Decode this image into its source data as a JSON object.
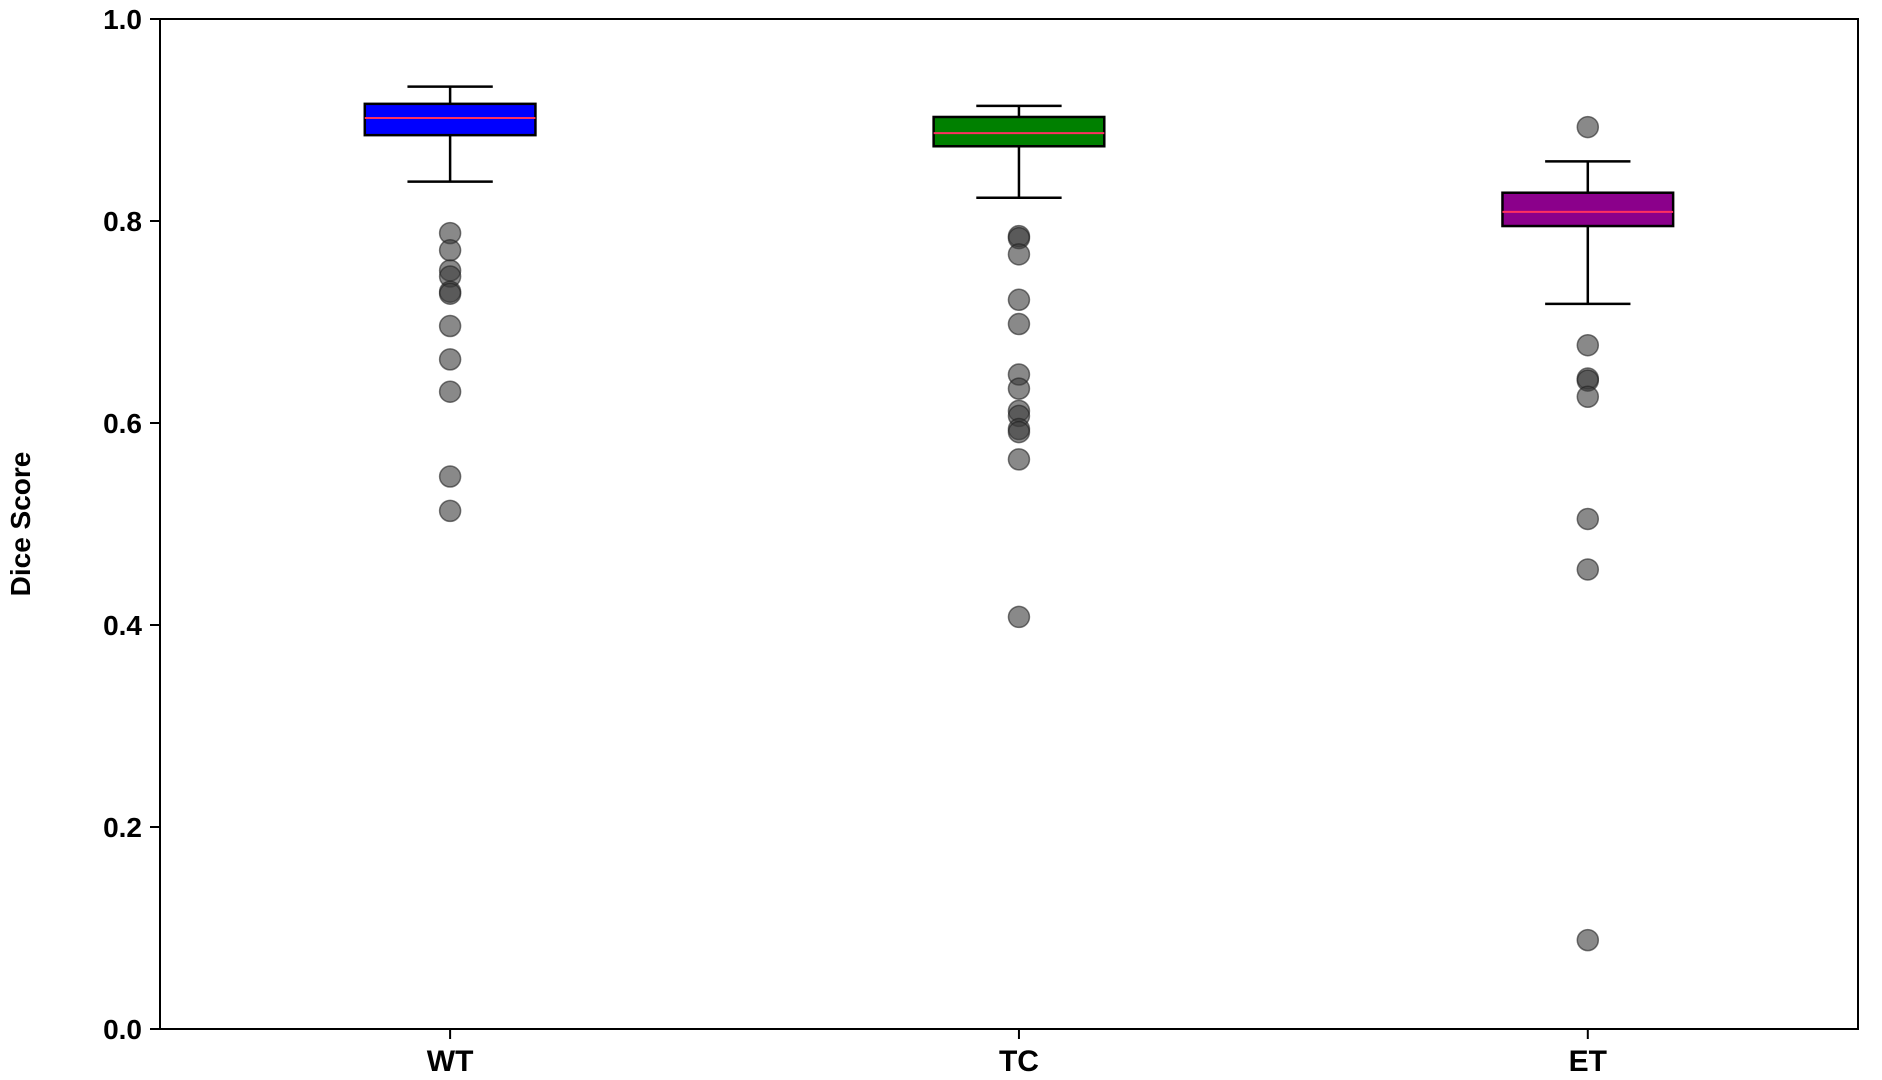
{
  "chart_data": {
    "type": "box",
    "title": "",
    "xlabel": "",
    "ylabel": "Dice Score",
    "ylim": [
      0.0,
      1.0
    ],
    "yticks": [
      "0.0",
      "0.2",
      "0.4",
      "0.6",
      "0.8",
      "1.0"
    ],
    "grid": false,
    "categories": [
      "WT",
      "TC",
      "ET"
    ],
    "series": [
      {
        "name": "WT",
        "color": "#0000ff",
        "median_color": "#ff3060",
        "whisker_low": 0.839,
        "q1": 0.885,
        "median": 0.902,
        "q3": 0.916,
        "whisker_high": 0.933,
        "outliers": [
          0.788,
          0.771,
          0.751,
          0.745,
          0.73,
          0.728,
          0.696,
          0.663,
          0.631,
          0.547,
          0.513
        ]
      },
      {
        "name": "TC",
        "color": "#008000",
        "median_color": "#ff3060",
        "whisker_low": 0.823,
        "q1": 0.874,
        "median": 0.887,
        "q3": 0.903,
        "whisker_high": 0.914,
        "outliers": [
          0.785,
          0.783,
          0.767,
          0.722,
          0.698,
          0.648,
          0.634,
          0.612,
          0.607,
          0.594,
          0.591,
          0.564,
          0.408
        ]
      },
      {
        "name": "ET",
        "color": "#8b008b",
        "median_color": "#ff3060",
        "whisker_low": 0.718,
        "q1": 0.795,
        "median": 0.809,
        "q3": 0.828,
        "whisker_high": 0.859,
        "outliers": [
          0.893,
          0.677,
          0.644,
          0.642,
          0.626,
          0.505,
          0.455,
          0.088
        ]
      }
    ]
  }
}
